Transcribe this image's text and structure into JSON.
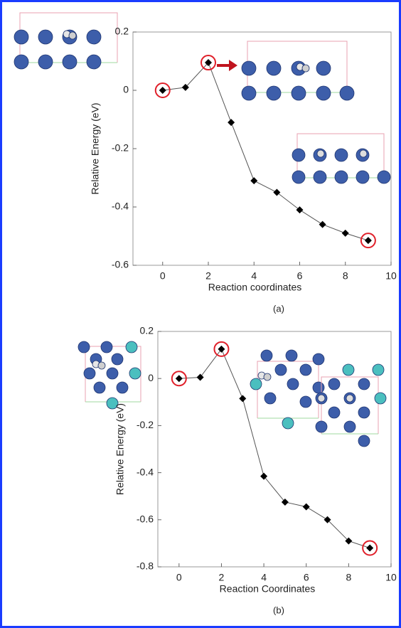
{
  "chart_data": [
    {
      "type": "line",
      "x": [
        0,
        1,
        2,
        3,
        4,
        5,
        6,
        7,
        8,
        9
      ],
      "values": [
        0,
        0.01,
        0.095,
        -0.11,
        -0.31,
        -0.35,
        -0.41,
        -0.46,
        -0.49,
        -0.515
      ],
      "color": "#000000",
      "line_color": "#555555",
      "marker": "diamond",
      "highlighted_points": [
        0,
        2,
        9
      ],
      "highlight_color": "#e0202a",
      "xlim": [
        -1.3,
        10
      ],
      "xticks": [
        0,
        2,
        4,
        6,
        8,
        10
      ],
      "ylim": [
        -0.6,
        0.2
      ],
      "yticks": [
        -0.6,
        -0.4,
        -0.2,
        0,
        0.2
      ],
      "xlabel": "Reaction coordinates",
      "ylabel": "Relative Energy (eV)",
      "caption": "(a)"
    },
    {
      "type": "line",
      "x": [
        0,
        1,
        2,
        3,
        4,
        5,
        6,
        7,
        8,
        9
      ],
      "values": [
        0,
        0.005,
        0.125,
        -0.085,
        -0.415,
        -0.525,
        -0.545,
        -0.6,
        -0.69,
        -0.72
      ],
      "color": "#000000",
      "line_color": "#555555",
      "marker": "diamond",
      "highlighted_points": [
        0,
        2,
        9
      ],
      "highlight_color": "#e0202a",
      "xlim": [
        -1,
        10
      ],
      "xticks": [
        0,
        2,
        4,
        6,
        8,
        10
      ],
      "ylim": [
        -0.8,
        0.2
      ],
      "yticks": [
        -0.8,
        -0.6,
        -0.4,
        -0.2,
        0,
        0.2
      ],
      "xlabel": "Reaction Coordinates",
      "ylabel": "Relative Energy (eV)",
      "caption": "(b)"
    }
  ]
}
